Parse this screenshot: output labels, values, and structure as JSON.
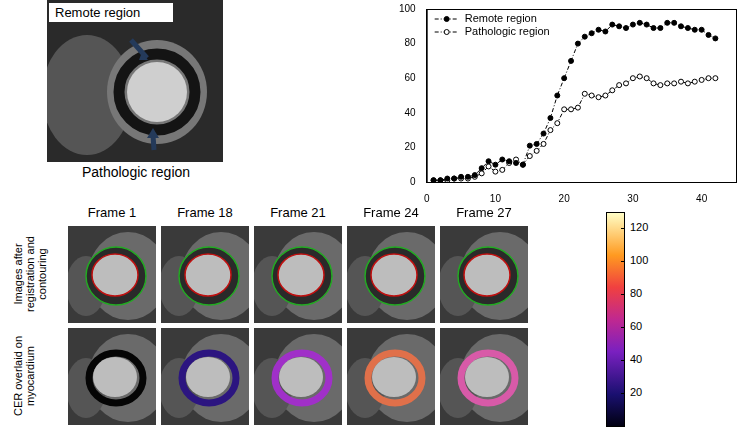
{
  "chart_data": {
    "type": "line",
    "x": [
      1,
      2,
      3,
      4,
      5,
      6,
      7,
      8,
      9,
      10,
      11,
      12,
      13,
      14,
      15,
      16,
      17,
      18,
      19,
      20,
      21,
      22,
      23,
      24,
      25,
      26,
      27,
      28,
      29,
      30,
      31,
      32,
      33,
      34,
      35,
      36,
      37,
      38,
      39,
      40,
      41,
      42
    ],
    "series": [
      {
        "name": "Remote region",
        "color": "#000000",
        "marker": "circle",
        "line_style": "dashed",
        "values": [
          1,
          1,
          2,
          2,
          3,
          3,
          4,
          8,
          12,
          10,
          13,
          12,
          11,
          10,
          21,
          22,
          28,
          37,
          50,
          60,
          70,
          80,
          84,
          86,
          88,
          87,
          91,
          90,
          89,
          91,
          92,
          91,
          89,
          89,
          92,
          92,
          90,
          89,
          88,
          88,
          85,
          83
        ]
      },
      {
        "name": "Pathologic region",
        "color": "#000000",
        "marker": "open_circle",
        "line_style": "dashed",
        "values": [
          1,
          1,
          1,
          2,
          2,
          2,
          3,
          5,
          9,
          6,
          7,
          11,
          13,
          10,
          15,
          18,
          22,
          30,
          34,
          42,
          42,
          43,
          51,
          50,
          49,
          50,
          53,
          56,
          57,
          60,
          61,
          60,
          57,
          56,
          57,
          57,
          58,
          57,
          58,
          59,
          60,
          60
        ]
      }
    ],
    "xlim": [
      0,
      45
    ],
    "xticks": [
      0,
      10,
      20,
      30,
      40
    ],
    "ylim": [
      0,
      100
    ],
    "yticks": [
      0,
      20,
      40,
      60,
      80,
      100
    ],
    "grid": false,
    "legend": "upper left"
  },
  "image_panel": {
    "labels": [
      "Remote region",
      "Pathologic region"
    ]
  },
  "frames": {
    "titles": [
      "Frame 1",
      "Frame 18",
      "Frame 21",
      "Frame 24",
      "Frame 27"
    ],
    "row_labels": [
      "Images after registration and contouring",
      "CER overlaid on myocardium"
    ]
  },
  "colorbar": {
    "range": [
      0,
      130
    ],
    "ticks": [
      20,
      40,
      60,
      80,
      100,
      120
    ]
  }
}
